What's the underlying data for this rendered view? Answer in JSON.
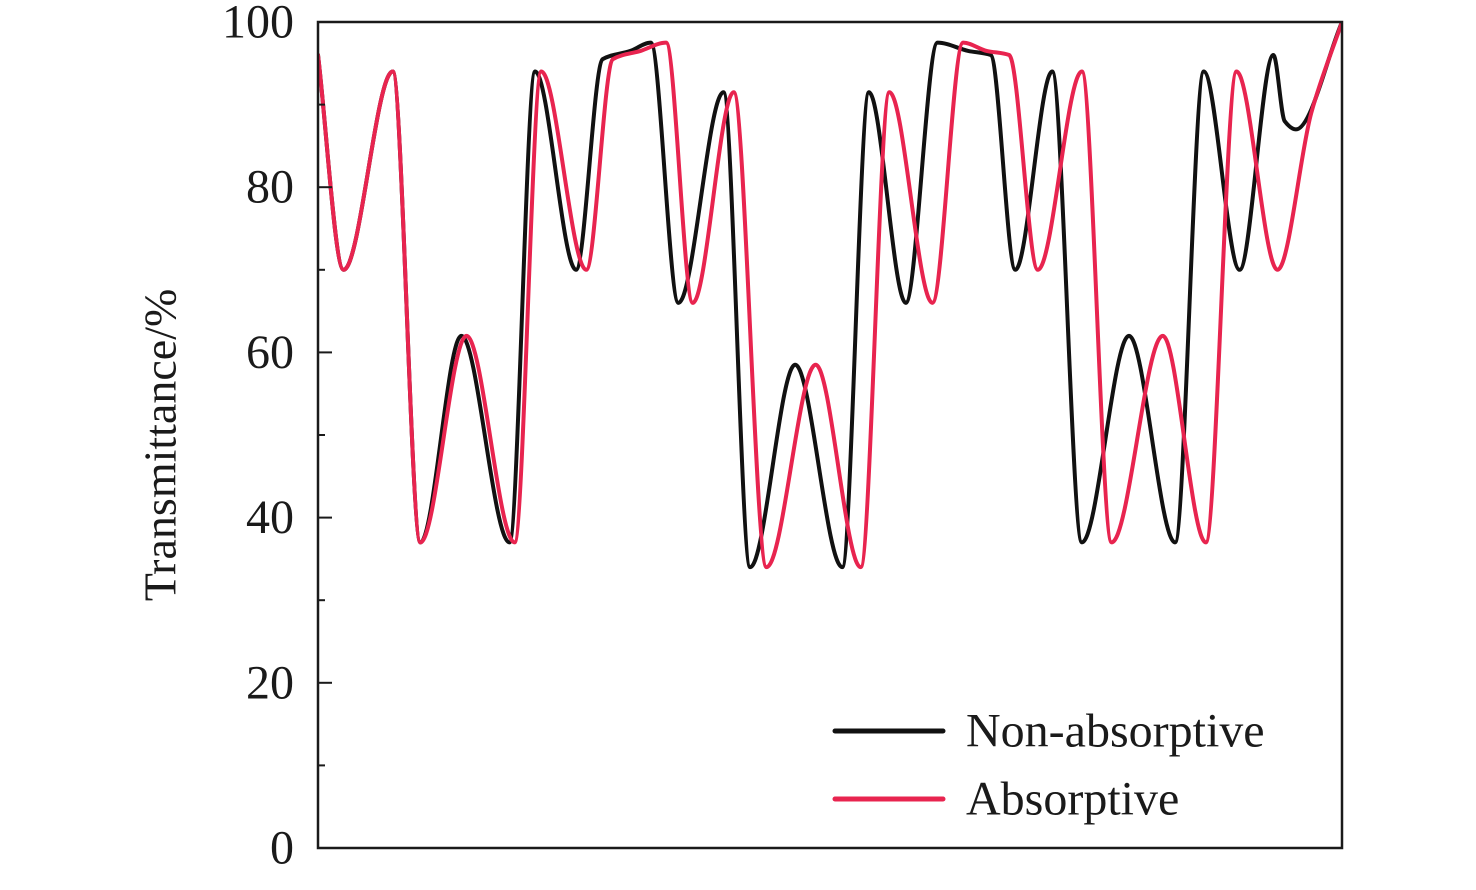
{
  "chart_data": {
    "type": "line",
    "title": "",
    "xlabel": "",
    "ylabel": "Transmittance/%",
    "xlim": [
      0,
      100
    ],
    "ylim": [
      0,
      100
    ],
    "yticks": [
      0,
      20,
      40,
      60,
      80,
      100
    ],
    "yticks_minor": [
      10,
      30,
      50,
      70,
      90
    ],
    "x_tick_labels_shown": false,
    "grid": false,
    "legend": {
      "position": "bottom-right"
    },
    "series": [
      {
        "name": "Non-absorptive",
        "color": "#111111",
        "points": [
          [
            0,
            96
          ],
          [
            2.5,
            70
          ],
          [
            7.3,
            94
          ],
          [
            10,
            37
          ],
          [
            14,
            62
          ],
          [
            18.7,
            37
          ],
          [
            21.2,
            94
          ],
          [
            25.2,
            70
          ],
          [
            27.8,
            95.5
          ],
          [
            30.5,
            96.5
          ],
          [
            32.5,
            97.5
          ],
          [
            35.2,
            66
          ],
          [
            39.6,
            91.5
          ],
          [
            42.2,
            34
          ],
          [
            46.6,
            58.5
          ],
          [
            51.2,
            34
          ],
          [
            53.8,
            91.5
          ],
          [
            57.4,
            66
          ],
          [
            60.5,
            97.5
          ],
          [
            63.5,
            96.5
          ],
          [
            65.7,
            96
          ],
          [
            68.1,
            70
          ],
          [
            71.7,
            94
          ],
          [
            74.6,
            37
          ],
          [
            79.2,
            62
          ],
          [
            83.7,
            37
          ],
          [
            86.5,
            94
          ],
          [
            90,
            70
          ],
          [
            93.3,
            96
          ],
          [
            94.4,
            88
          ],
          [
            95.5,
            87
          ],
          [
            100,
            100
          ]
        ]
      },
      {
        "name": "Absorptive",
        "color": "#e8244f",
        "points": [
          [
            0,
            96
          ],
          [
            2.5,
            70
          ],
          [
            7.3,
            94
          ],
          [
            10,
            37
          ],
          [
            14.5,
            62
          ],
          [
            19.2,
            37
          ],
          [
            21.8,
            94
          ],
          [
            26.2,
            70
          ],
          [
            28.8,
            95.5
          ],
          [
            31.5,
            96.5
          ],
          [
            34,
            97.5
          ],
          [
            36.6,
            66
          ],
          [
            40.6,
            91.5
          ],
          [
            43.8,
            34
          ],
          [
            48.6,
            58.5
          ],
          [
            53,
            34
          ],
          [
            55.8,
            91.5
          ],
          [
            60,
            66
          ],
          [
            63,
            97.5
          ],
          [
            65.3,
            96.5
          ],
          [
            67.5,
            96
          ],
          [
            70.3,
            70
          ],
          [
            74.6,
            94
          ],
          [
            77.5,
            37
          ],
          [
            82.5,
            62
          ],
          [
            86.7,
            37
          ],
          [
            89.7,
            94
          ],
          [
            93.7,
            70
          ],
          [
            97,
            89
          ],
          [
            100,
            100
          ]
        ]
      }
    ]
  }
}
